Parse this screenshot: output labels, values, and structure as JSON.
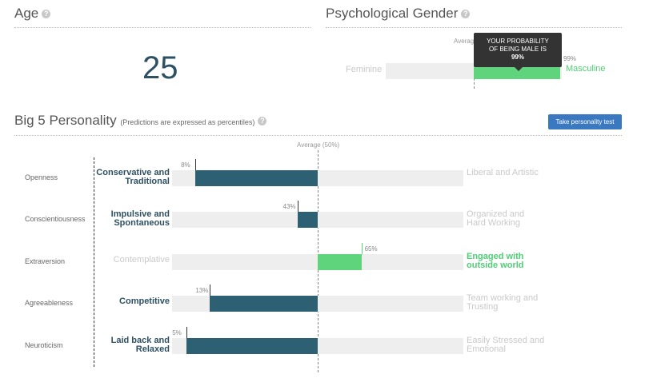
{
  "age": {
    "title": "Age",
    "value": "25"
  },
  "gender": {
    "title": "Psychological Gender",
    "average_label": "Average",
    "left_label": "Feminine",
    "right_label": "Masculine",
    "pct_label": "99%",
    "value_fraction": 0.99,
    "tooltip_line1": "YOUR PROBABILITY",
    "tooltip_line2": "OF BEING MALE IS",
    "tooltip_value": "99%"
  },
  "big5": {
    "title": "Big 5 Personality",
    "subtitle": "(Predictions are expressed as percentiles)",
    "button_label": "Take personality test",
    "average_label": "Average (50%)",
    "traits": [
      {
        "name": "Openness",
        "left_line1": "Conservative and",
        "left_line2": "Traditional",
        "right_line1": "Liberal and Artistic",
        "right_line2": "",
        "pct_label": "8%",
        "value": 8
      },
      {
        "name": "Conscientiousness",
        "left_line1": "Impulsive and",
        "left_line2": "Spontaneous",
        "right_line1": "Organized and",
        "right_line2": "Hard Working",
        "pct_label": "43%",
        "value": 43
      },
      {
        "name": "Extraversion",
        "left_line1": "Contemplative",
        "left_line2": "",
        "right_line1": "Engaged with",
        "right_line2": "outside world",
        "pct_label": "65%",
        "value": 65
      },
      {
        "name": "Agreeableness",
        "left_line1": "Competitive",
        "left_line2": "",
        "right_line1": "Team working and",
        "right_line2": "Trusting",
        "pct_label": "13%",
        "value": 13
      },
      {
        "name": "Neuroticism",
        "left_line1": "Laid back and",
        "left_line2": "Relaxed",
        "right_line1": "Easily Stressed and",
        "right_line2": "Emotional",
        "pct_label": "5%",
        "value": 5
      }
    ],
    "colors": {
      "low": "#2d6072",
      "high": "#5fd47d",
      "track": "#eeeeee"
    }
  }
}
